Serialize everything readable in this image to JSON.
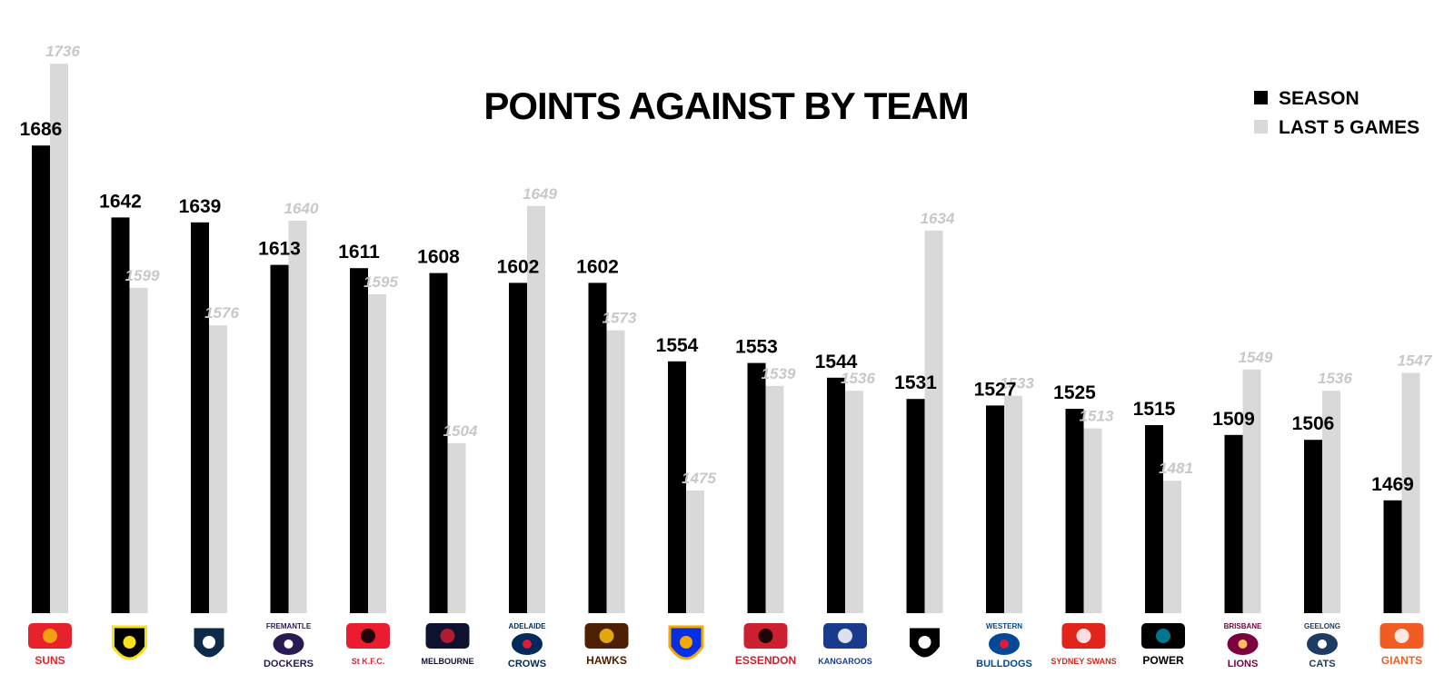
{
  "chart_data": {
    "type": "bar",
    "title": "POINTS AGAINST BY TEAM",
    "categories": [
      "SUNS",
      "Tigers",
      "Blues",
      "DOCKERS",
      "ST K.F.C.",
      "MELBOURNE",
      "ADELAIDE CROWS",
      "HAWKS",
      "Eagles",
      "ESSENDON",
      "KANGAROOS",
      "Magpies",
      "WESTERN BULLDOGS",
      "SYDNEY SWANS",
      "POWER",
      "LIONS",
      "CATS",
      "GIANTS"
    ],
    "series": [
      {
        "name": "SEASON",
        "color": "#000000",
        "values": [
          1686,
          1642,
          1639,
          1613,
          1611,
          1608,
          1602,
          1602,
          1554,
          1553,
          1544,
          1531,
          1527,
          1525,
          1515,
          1509,
          1506,
          1469
        ]
      },
      {
        "name": "LAST 5 GAMES",
        "color": "#d9d9d9",
        "values": [
          1736,
          1599,
          1576,
          1640,
          1595,
          1504,
          1649,
          1573,
          1475,
          1539,
          1536,
          1634,
          1533,
          1513,
          1481,
          1549,
          1536,
          1547
        ]
      }
    ],
    "season_labels": [
      "1686",
      "1642",
      "1639",
      "1613",
      "1611",
      "1608",
      "1602",
      "1602",
      "1554",
      "1553",
      "1544",
      "1531",
      "1527",
      "1525",
      "1515",
      "1509",
      "1506",
      "1469"
    ],
    "last5_labels": [
      "1736",
      "1599",
      "1576",
      "1640",
      "1595",
      "1504",
      "1649",
      "1573",
      "1475",
      "1539",
      "1536",
      "1634",
      "1533",
      "1513",
      "1481",
      "1549",
      "1536",
      "1547"
    ],
    "ylim": [
      1400,
      1750
    ],
    "grid": false,
    "legend_position": "top-right",
    "logos": [
      {
        "icon": "gold-coast-suns-logo",
        "text": [
          "SUNS"
        ],
        "colors": [
          "#e8222a",
          "#f7b512"
        ]
      },
      {
        "icon": "richmond-tigers-logo",
        "text": [],
        "colors": [
          "#000000",
          "#f8e11c"
        ]
      },
      {
        "icon": "carlton-blues-logo",
        "text": [],
        "colors": [
          "#0e2a47",
          "#ffffff"
        ]
      },
      {
        "icon": "fremantle-dockers-logo",
        "text": [
          "FREMANTLE",
          "DOCKERS"
        ],
        "colors": [
          "#2a1a54",
          "#ffffff"
        ]
      },
      {
        "icon": "st-kilda-saints-logo",
        "text": [
          "St K.F.C."
        ],
        "colors": [
          "#ed1b2f",
          "#000000"
        ]
      },
      {
        "icon": "melbourne-demons-logo",
        "text": [
          "MELBOURNE"
        ],
        "colors": [
          "#0f1131",
          "#cc2031"
        ]
      },
      {
        "icon": "adelaide-crows-logo",
        "text": [
          "ADELAIDE",
          "CROWS"
        ],
        "colors": [
          "#002b5c",
          "#e21937"
        ]
      },
      {
        "icon": "hawthorn-hawks-logo",
        "text": [
          "HAWKS"
        ],
        "colors": [
          "#4d2004",
          "#fbbf15"
        ]
      },
      {
        "icon": "west-coast-eagles-logo",
        "text": [],
        "colors": [
          "#062ee2",
          "#f2a900"
        ]
      },
      {
        "icon": "essendon-bombers-logo",
        "text": [
          "ESSENDON"
        ],
        "colors": [
          "#cc2031",
          "#000000"
        ]
      },
      {
        "icon": "north-melbourne-kangaroos-logo",
        "text": [
          "KANGAROOS"
        ],
        "colors": [
          "#1a3b8b",
          "#ffffff"
        ]
      },
      {
        "icon": "collingwood-magpies-logo",
        "text": [],
        "colors": [
          "#000000",
          "#ffffff"
        ]
      },
      {
        "icon": "western-bulldogs-logo",
        "text": [
          "WESTERN",
          "BULLDOGS"
        ],
        "colors": [
          "#014896",
          "#e31937"
        ]
      },
      {
        "icon": "sydney-swans-logo",
        "text": [
          "SYDNEY SWANS"
        ],
        "colors": [
          "#e1251b",
          "#ffffff"
        ]
      },
      {
        "icon": "port-adelaide-power-logo",
        "text": [
          "POWER"
        ],
        "colors": [
          "#000000",
          "#008aab"
        ]
      },
      {
        "icon": "brisbane-lions-logo",
        "text": [
          "BRISBANE",
          "LIONS"
        ],
        "colors": [
          "#7c003e",
          "#fdbe57"
        ]
      },
      {
        "icon": "geelong-cats-logo",
        "text": [
          "GEELONG",
          "CATS"
        ],
        "colors": [
          "#1c3c63",
          "#ffffff"
        ]
      },
      {
        "icon": "gws-giants-logo",
        "text": [
          "GIANTS"
        ],
        "colors": [
          "#f15c22",
          "#ffffff"
        ]
      }
    ]
  }
}
